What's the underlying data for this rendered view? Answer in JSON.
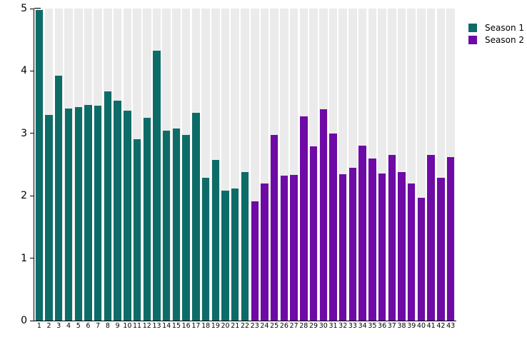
{
  "chart_data": {
    "type": "bar",
    "title": "",
    "xlabel": "",
    "ylabel": "",
    "categories": [
      "1",
      "2",
      "3",
      "4",
      "5",
      "6",
      "7",
      "8",
      "9",
      "10",
      "11",
      "12",
      "13",
      "14",
      "15",
      "16",
      "17",
      "18",
      "19",
      "20",
      "21",
      "22",
      "23",
      "24",
      "25",
      "26",
      "27",
      "28",
      "29",
      "30",
      "31",
      "32",
      "33",
      "34",
      "35",
      "36",
      "37",
      "38",
      "39",
      "40",
      "41",
      "42",
      "43"
    ],
    "series": [
      {
        "name": "Season 1",
        "color": "#0E6C68",
        "values": [
          4.98,
          3.29,
          3.92,
          3.4,
          3.42,
          3.46,
          3.44,
          3.67,
          3.52,
          3.36,
          2.91,
          3.25,
          4.33,
          3.04,
          3.08,
          2.97,
          3.33,
          2.29,
          2.57,
          2.08,
          2.12,
          2.38
        ]
      },
      {
        "name": "Season 2",
        "color": "#6E0AA5",
        "values": [
          1.91,
          2.2,
          2.98,
          2.32,
          2.33,
          3.27,
          2.79,
          3.39,
          3.0,
          2.35,
          2.45,
          2.8,
          2.6,
          2.36,
          2.65,
          2.38,
          2.2,
          1.97,
          2.66,
          2.29,
          2.62
        ]
      }
    ],
    "ylim": [
      0,
      5
    ],
    "yticks": [
      "0",
      "1",
      "2",
      "3",
      "4",
      "5"
    ],
    "grid": false,
    "legend": {
      "position": "top-right",
      "entries": [
        "Season 1",
        "Season 2"
      ]
    },
    "plot_style": {
      "background_stripe_color": "#EBEBEB",
      "axis_color": "#000000",
      "text_color": "#000000",
      "background_color": "#FFFFFF"
    }
  }
}
